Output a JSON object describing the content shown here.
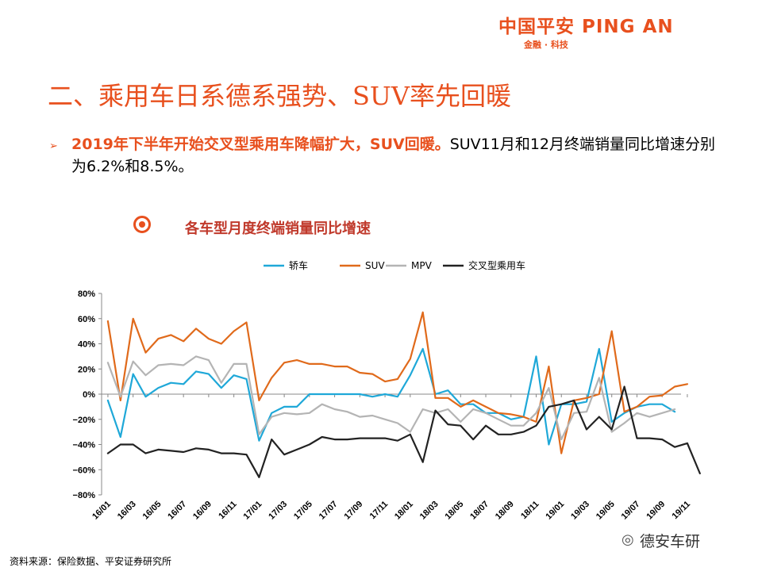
{
  "logo": {
    "cn": "中国平安",
    "en": "PING AN",
    "sub": "金融 · 科技"
  },
  "page_title": "二、乘用车日系德系强势、SUV率先回暖",
  "bullet": {
    "arrow": "➢",
    "highlight": "2019年下半年开始交叉型乘用车降幅扩大，SUV回暖。",
    "rest": "SUV11月和12月终端销量同比增速分别为6.2%和8.5%。"
  },
  "section_icon": "target-icon",
  "chart_data": {
    "type": "line",
    "title": "各车型月度终端销量同比增速",
    "xlabel": "",
    "ylabel": "",
    "ylim": [
      -80,
      80
    ],
    "yticks": [
      "80%",
      "60%",
      "40%",
      "20%",
      "0%",
      "−20%",
      "−40%",
      "−60%",
      "−80%"
    ],
    "ytick_values": [
      80,
      60,
      40,
      20,
      0,
      -20,
      -40,
      -60,
      -80
    ],
    "x_labels": [
      "16/01",
      "16/03",
      "16/05",
      "16/07",
      "16/09",
      "16/11",
      "17/01",
      "17/03",
      "17/05",
      "17/07",
      "17/09",
      "17/11",
      "18/01",
      "18/03",
      "18/05",
      "18/07",
      "18/09",
      "18/11",
      "19/01",
      "19/03",
      "19/05",
      "19/07",
      "19/09",
      "19/11"
    ],
    "legend_position": "top",
    "grid": false,
    "series": [
      {
        "name": "轿车",
        "color": "#1fa8d8",
        "values": [
          -5,
          -34,
          16,
          -2,
          5,
          9,
          8,
          18,
          16,
          5,
          15,
          12,
          -37,
          -15,
          -10,
          -10,
          0,
          0,
          0,
          0,
          0,
          -2,
          0,
          -2,
          15,
          36,
          0,
          3,
          -8,
          -8,
          -15,
          -15,
          -20,
          -18,
          30,
          -40,
          -8,
          -8,
          -6,
          36,
          -22,
          -15,
          -10,
          -8,
          -8,
          -14
        ]
      },
      {
        "name": "SUV",
        "color": "#e06a1b",
        "values": [
          58,
          -5,
          60,
          33,
          44,
          47,
          42,
          52,
          44,
          40,
          50,
          57,
          -5,
          13,
          25,
          27,
          24,
          24,
          22,
          22,
          17,
          16,
          10,
          12,
          28,
          65,
          -3,
          -3,
          -10,
          -5,
          -10,
          -15,
          -16,
          -18,
          -22,
          22,
          -47,
          -5,
          -3,
          0,
          50,
          -14,
          -10,
          -2,
          -1,
          6,
          8
        ]
      },
      {
        "name": "MPV",
        "color": "#b4b4b4",
        "values": [
          25,
          -2,
          26,
          15,
          23,
          24,
          23,
          30,
          27,
          9,
          24,
          24,
          -32,
          -18,
          -15,
          -16,
          -15,
          -8,
          -12,
          -14,
          -18,
          -17,
          -20,
          -23,
          -30,
          -12,
          -15,
          -12,
          -22,
          -12,
          -15,
          -20,
          -25,
          -25,
          -15,
          5,
          -36,
          -15,
          -14,
          13,
          -30,
          -23,
          -15,
          -18,
          -15,
          -12
        ]
      },
      {
        "name": "交叉型乘用车",
        "color": "#222222",
        "values": [
          -47,
          -40,
          -40,
          -47,
          -44,
          -45,
          -46,
          -43,
          -44,
          -47,
          -47,
          -48,
          -66,
          -36,
          -48,
          -44,
          -40,
          -34,
          -36,
          -36,
          -35,
          -35,
          -35,
          -37,
          -32,
          -54,
          -13,
          -24,
          -25,
          -36,
          -25,
          -32,
          -32,
          -30,
          -25,
          -10,
          -8,
          -5,
          -28,
          -18,
          -28,
          6,
          -35,
          -35,
          -36,
          -42,
          -39,
          -63
        ]
      }
    ]
  },
  "source": "资料来源：保险数据、平安证券研究所",
  "watermark": {
    "icon": "wechat-icon",
    "text": "德安车研"
  }
}
